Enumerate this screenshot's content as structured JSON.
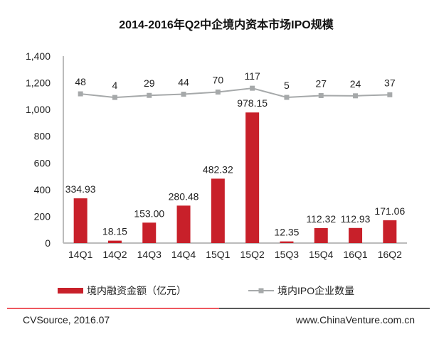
{
  "chart_data": {
    "type": "bar",
    "title": "2014-2016年Q2中企境内资本市场IPO规模",
    "categories": [
      "14Q1",
      "14Q2",
      "14Q3",
      "14Q4",
      "15Q1",
      "15Q2",
      "15Q3",
      "15Q4",
      "16Q1",
      "16Q2"
    ],
    "series": [
      {
        "name": "境内融资金额（亿元）",
        "type": "bar",
        "axis": "left",
        "color": "#c8202a",
        "values": [
          334.93,
          18.15,
          153.0,
          280.48,
          482.32,
          978.15,
          12.35,
          112.32,
          112.93,
          171.06
        ],
        "labels": [
          "334.93",
          "18.15",
          "153.00",
          "280.48",
          "482.32",
          "978.15",
          "12.35",
          "112.32",
          "112.93",
          "171.06"
        ]
      },
      {
        "name": "境内IPO企业数量",
        "type": "line",
        "axis": "secondary-hidden",
        "color": "#a6a9aa",
        "values": [
          48,
          4,
          29,
          44,
          70,
          117,
          5,
          27,
          24,
          37
        ],
        "labels": [
          "48",
          "4",
          "29",
          "44",
          "70",
          "117",
          "5",
          "27",
          "24",
          "37"
        ]
      }
    ],
    "ylim": [
      0,
      1400
    ],
    "y2lim": [
      -1780,
      510
    ],
    "yticks": [
      0,
      200,
      400,
      600,
      800,
      1000,
      1200,
      1400
    ],
    "ytick_labels": [
      "0",
      "200",
      "400",
      "600",
      "800",
      "1,000",
      "1,200",
      "1,400"
    ],
    "grid": false,
    "legend_position": "bottom"
  },
  "footer": {
    "source": "CVSource, 2016.07",
    "website": "www.ChinaVenture.com.cn"
  }
}
